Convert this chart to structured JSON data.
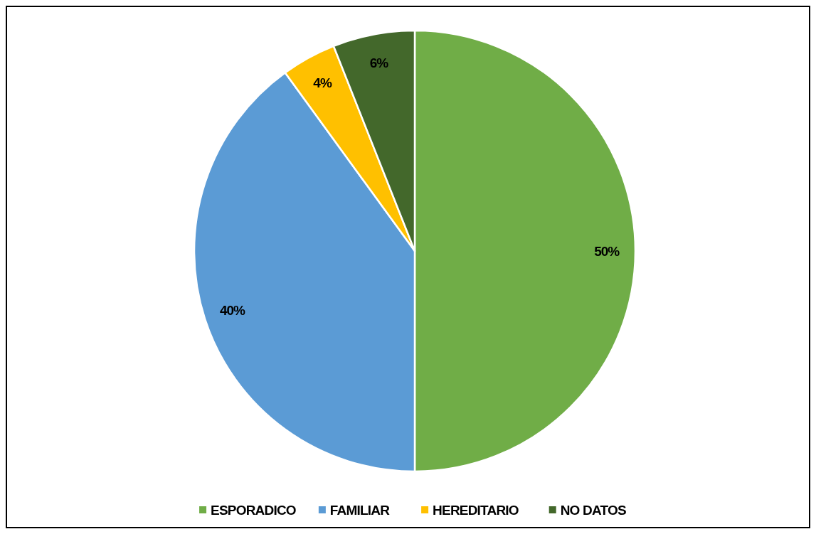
{
  "chart_data": {
    "type": "pie",
    "categories": [
      "ESPORADICO",
      "FAMILIAR",
      "HEREDITARIO",
      "NO DATOS"
    ],
    "values": [
      50,
      40,
      4,
      6
    ],
    "colors": [
      "#70ad47",
      "#5b9bd5",
      "#ffc000",
      "#43682b"
    ],
    "value_labels": [
      "50%",
      "40%",
      "4%",
      "6%"
    ],
    "legend": "bottom"
  }
}
